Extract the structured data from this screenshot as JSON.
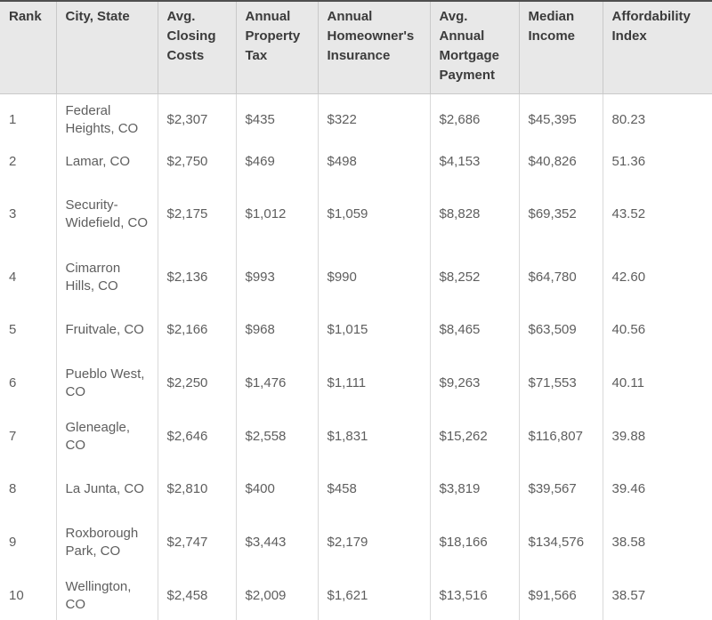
{
  "chart_data": {
    "type": "table",
    "columns": [
      "Rank",
      "City, State",
      "Avg. Closing Costs",
      "Annual Property Tax",
      "Annual Homeowner's Insurance",
      "Avg. Annual Mortgage Payment",
      "Median Income",
      "Affordability Index"
    ],
    "rows": [
      [
        "1",
        "Federal Heights, CO",
        "$2,307",
        "$435",
        "$322",
        "$2,686",
        "$45,395",
        "80.23"
      ],
      [
        "2",
        "Lamar, CO",
        "$2,750",
        "$469",
        "$498",
        "$4,153",
        "$40,826",
        "51.36"
      ],
      [
        "3",
        "Security-Widefield, CO",
        "$2,175",
        "$1,012",
        "$1,059",
        "$8,828",
        "$69,352",
        "43.52"
      ],
      [
        "4",
        "Cimarron Hills, CO",
        "$2,136",
        "$993",
        "$990",
        "$8,252",
        "$64,780",
        "42.60"
      ],
      [
        "5",
        "Fruitvale, CO",
        "$2,166",
        "$968",
        "$1,015",
        "$8,465",
        "$63,509",
        "40.56"
      ],
      [
        "6",
        "Pueblo West, CO",
        "$2,250",
        "$1,476",
        "$1,111",
        "$9,263",
        "$71,553",
        "40.11"
      ],
      [
        "7",
        "Gleneagle, CO",
        "$2,646",
        "$2,558",
        "$1,831",
        "$15,262",
        "$116,807",
        "39.88"
      ],
      [
        "8",
        "La Junta, CO",
        "$2,810",
        "$400",
        "$458",
        "$3,819",
        "$39,567",
        "39.46"
      ],
      [
        "9",
        "Roxborough Park, CO",
        "$2,747",
        "$3,443",
        "$2,179",
        "$18,166",
        "$134,576",
        "38.58"
      ],
      [
        "10",
        "Wellington, CO",
        "$2,458",
        "$2,009",
        "$1,621",
        "$13,516",
        "$91,566",
        "38.57"
      ]
    ]
  },
  "colors": {
    "top_border": "#4f4f4f",
    "header_bg": "#e8e8e8",
    "header_text": "#3b3b3b",
    "header_divider": "#c9c9c9",
    "column_divider": "#d9d9d9",
    "body_text": "#5e5e5e"
  }
}
